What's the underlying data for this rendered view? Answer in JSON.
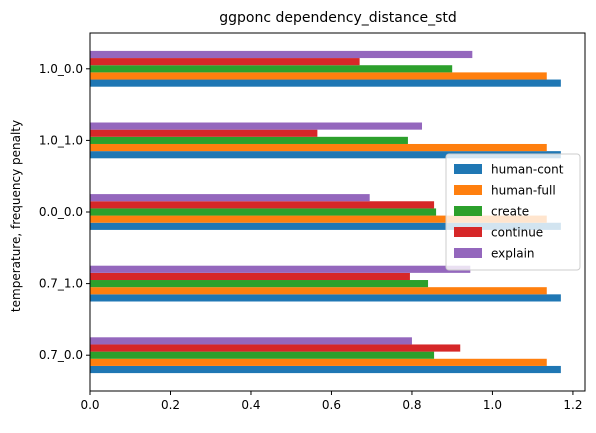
{
  "chart_data": {
    "type": "bar",
    "orientation": "horizontal",
    "title": "ggponc dependency_distance_std",
    "xlabel": "",
    "ylabel": "temperature, frequency penalty",
    "categories": [
      "0.7_0.0",
      "0.7_1.0",
      "0.0_0.0",
      "1.0_1.0",
      "1.0_0.0"
    ],
    "xlim": [
      0,
      1.23
    ],
    "xticks": [
      0.0,
      0.2,
      0.4,
      0.6,
      0.8,
      1.0,
      1.2
    ],
    "xtick_labels": [
      "0.0",
      "0.2",
      "0.4",
      "0.6",
      "0.8",
      "1.0",
      "1.2"
    ],
    "grid": false,
    "legend_position": "center-right",
    "series": [
      {
        "name": "human-cont",
        "color": "#1f77b4",
        "values": [
          1.17,
          1.17,
          1.17,
          1.17,
          1.17
        ]
      },
      {
        "name": "human-full",
        "color": "#ff7f0e",
        "values": [
          1.135,
          1.135,
          1.135,
          1.135,
          1.135
        ]
      },
      {
        "name": "create",
        "color": "#2ca02c",
        "values": [
          0.855,
          0.84,
          0.86,
          0.79,
          0.9
        ]
      },
      {
        "name": "continue",
        "color": "#d62728",
        "values": [
          0.92,
          0.795,
          0.855,
          0.565,
          0.67
        ]
      },
      {
        "name": "explain",
        "color": "#9467bd",
        "values": [
          0.8,
          0.945,
          0.695,
          0.825,
          0.95
        ]
      }
    ]
  }
}
